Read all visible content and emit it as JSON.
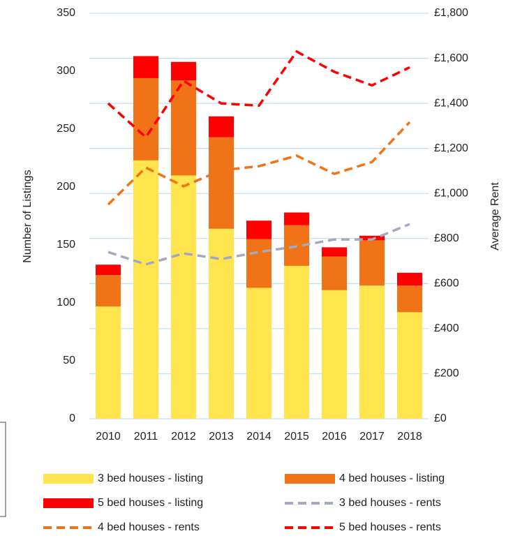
{
  "chart_data": {
    "type": "combo",
    "y_label": "Number of Listings",
    "y2_label": "Average Rent",
    "categories": [
      "2010",
      "2011",
      "2012",
      "2013",
      "2014",
      "2015",
      "2016",
      "2017",
      "2018"
    ],
    "series": [
      {
        "name": "3 bed houses - listing",
        "type": "bar",
        "color": "#ffe44d",
        "values": [
          97,
          223,
          210,
          164,
          113,
          132,
          111,
          115,
          92
        ]
      },
      {
        "name": "4 bed houses - listing",
        "type": "bar",
        "color": "#f07417",
        "values": [
          27,
          71,
          82,
          79,
          42,
          35,
          29,
          39,
          23
        ]
      },
      {
        "name": "5 bed houses - listing",
        "type": "bar",
        "color": "#ff0000",
        "values": [
          9,
          19,
          16,
          18,
          16,
          11,
          8,
          4,
          11
        ]
      },
      {
        "name": "3 bed houses - rents",
        "type": "line",
        "axis": "y2",
        "line_style": "dashed",
        "color": "#a4a9c2",
        "values": [
          740,
          685,
          734,
          709,
          740,
          765,
          796,
          796,
          864
        ]
      },
      {
        "name": "4 bed houses - rents",
        "type": "line",
        "axis": "y2",
        "line_style": "dashed",
        "color": "#f07417",
        "values": [
          951,
          1115,
          1032,
          1103,
          1121,
          1168,
          1087,
          1140,
          1317
        ]
      },
      {
        "name": "5 bed houses - rents",
        "type": "line",
        "axis": "y2",
        "line_style": "dashed",
        "color": "#ff0000",
        "values": [
          1400,
          1250,
          1500,
          1400,
          1390,
          1630,
          1540,
          1480,
          1560
        ]
      }
    ],
    "ylim": [
      0,
      350
    ],
    "yticks": [
      0,
      50,
      100,
      150,
      200,
      250,
      300,
      350
    ],
    "y2lim": [
      0,
      1800
    ],
    "y2ticks": [
      {
        "value": 0,
        "label": "£0"
      },
      {
        "value": 200,
        "label": "£200"
      },
      {
        "value": 400,
        "label": "£400"
      },
      {
        "value": 600,
        "label": "£600"
      },
      {
        "value": 800,
        "label": "£800"
      },
      {
        "value": 1000,
        "label": "£1,000"
      },
      {
        "value": 1200,
        "label": "£1,200"
      },
      {
        "value": 1400,
        "label": "£1,400"
      },
      {
        "value": 1600,
        "label": "£1,600"
      },
      {
        "value": 1800,
        "label": "£1,800"
      }
    ],
    "grid": true,
    "stacked": true,
    "legend": "bottom"
  }
}
